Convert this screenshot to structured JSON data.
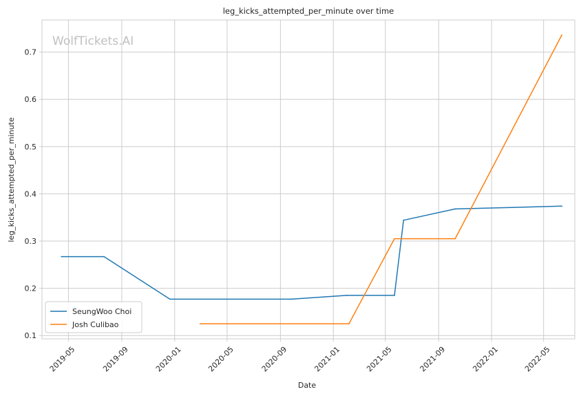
{
  "chart_data": {
    "type": "line",
    "title": "leg_kicks_attempted_per_minute over time",
    "xlabel": "Date",
    "ylabel": "leg_kicks_attempted_per_minute",
    "watermark": "WolfTickets.AI",
    "x_ticks": [
      "2019-05",
      "2019-09",
      "2020-01",
      "2020-05",
      "2020-09",
      "2021-01",
      "2021-05",
      "2021-09",
      "2022-01",
      "2022-05"
    ],
    "y_ticks": [
      "0.1",
      "0.2",
      "0.3",
      "0.4",
      "0.5",
      "0.6",
      "0.7"
    ],
    "xlim": [
      "2019-03-01",
      "2022-07-12"
    ],
    "ylim": [
      0.093,
      0.768
    ],
    "grid": true,
    "legend_position": "lower-left",
    "series": [
      {
        "name": "SeungWoo Choi",
        "color": "#1f77b4",
        "points": [
          {
            "x": "2019-04-15",
            "y": 0.267
          },
          {
            "x": "2019-07-22",
            "y": 0.267
          },
          {
            "x": "2019-12-21",
            "y": 0.177
          },
          {
            "x": "2020-09-26",
            "y": 0.177
          },
          {
            "x": "2021-02-01",
            "y": 0.185
          },
          {
            "x": "2021-05-22",
            "y": 0.185
          },
          {
            "x": "2021-06-12",
            "y": 0.344
          },
          {
            "x": "2021-10-09",
            "y": 0.368
          },
          {
            "x": "2022-06-12",
            "y": 0.374
          }
        ]
      },
      {
        "name": "Josh Culibao",
        "color": "#ff7f0e",
        "points": [
          {
            "x": "2020-02-29",
            "y": 0.125
          },
          {
            "x": "2021-02-06",
            "y": 0.125
          },
          {
            "x": "2021-05-22",
            "y": 0.305
          },
          {
            "x": "2021-10-09",
            "y": 0.305
          },
          {
            "x": "2022-06-12",
            "y": 0.736
          }
        ]
      }
    ]
  }
}
